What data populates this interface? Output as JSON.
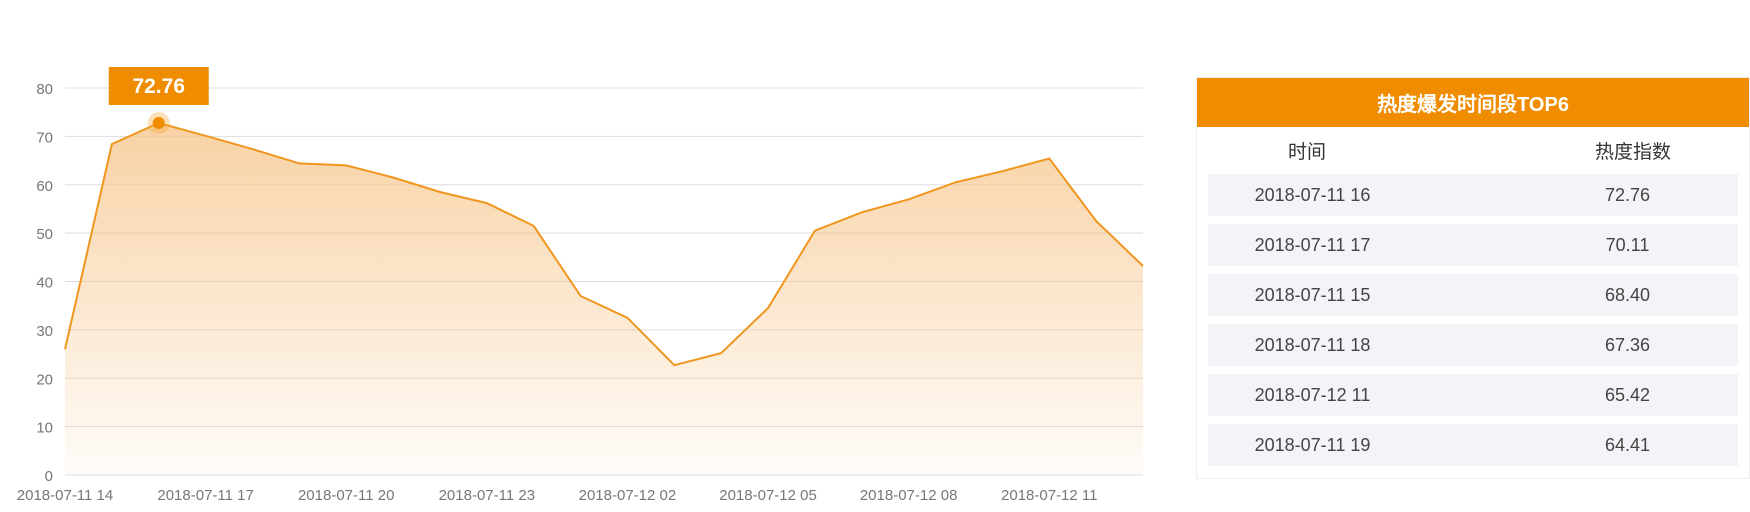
{
  "chart_data": {
    "type": "area",
    "x": [
      "2018-07-11 14",
      "2018-07-11 15",
      "2018-07-11 16",
      "2018-07-11 17",
      "2018-07-11 18",
      "2018-07-11 19",
      "2018-07-11 20",
      "2018-07-11 21",
      "2018-07-11 22",
      "2018-07-11 23",
      "2018-07-12 00",
      "2018-07-12 01",
      "2018-07-12 02",
      "2018-07-12 03",
      "2018-07-12 04",
      "2018-07-12 05",
      "2018-07-12 06",
      "2018-07-12 07",
      "2018-07-12 08",
      "2018-07-12 09",
      "2018-07-12 10",
      "2018-07-12 11",
      "2018-07-12 12",
      "2018-07-12 13"
    ],
    "x_tick_labels": [
      "2018-07-11 14",
      "2018-07-11 17",
      "2018-07-11 20",
      "2018-07-11 23",
      "2018-07-12 02",
      "2018-07-12 05",
      "2018-07-12 08",
      "2018-07-12 11"
    ],
    "series": [
      {
        "values": [
          26,
          68.4,
          72.76,
          70.11,
          67.36,
          64.41,
          64,
          61.5,
          58.5,
          56.2,
          51.5,
          37,
          32.5,
          22.7,
          25.2,
          34.5,
          50.5,
          54.3,
          57,
          60.5,
          62.8,
          65.42,
          52.5,
          43.2
        ]
      }
    ],
    "ylim": [
      0,
      80
    ],
    "y_ticks": [
      0,
      10,
      20,
      30,
      40,
      50,
      60,
      70,
      80
    ],
    "grid": true,
    "highlight": {
      "index": 2,
      "label": "72.76"
    },
    "line_color": "#f0961e",
    "fill_color": "#f7c88a"
  },
  "panel": {
    "title": "热度爆发时间段TOP6",
    "col_time": "时间",
    "col_index": "热度指数",
    "rows": [
      {
        "time": "2018-07-11 16",
        "value": "72.76"
      },
      {
        "time": "2018-07-11 17",
        "value": "70.11"
      },
      {
        "time": "2018-07-11 15",
        "value": "68.40"
      },
      {
        "time": "2018-07-11 18",
        "value": "67.36"
      },
      {
        "time": "2018-07-12 11",
        "value": "65.42"
      },
      {
        "time": "2018-07-11 19",
        "value": "64.41"
      }
    ],
    "header_color": "#f08c00"
  }
}
